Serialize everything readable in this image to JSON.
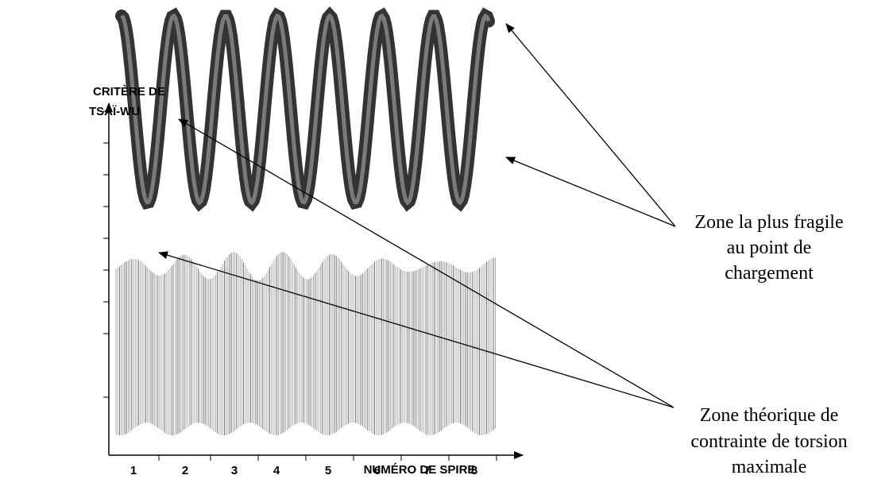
{
  "y_axis_label": [
    "CRITÈRE DE",
    "TSAÏ-WU"
  ],
  "x_axis_label": "NUMÉRO DE SPIRE",
  "x_tick_labels": [
    "1",
    "2",
    "3",
    "4",
    "5",
    "6",
    "7",
    "8"
  ],
  "annotations": [
    {
      "lines": [
        "Zone la plus fragile",
        "au point de",
        "chargement"
      ]
    },
    {
      "lines": [
        "Zone théorique de",
        "contrainte de torsion",
        "maximale"
      ]
    }
  ]
}
